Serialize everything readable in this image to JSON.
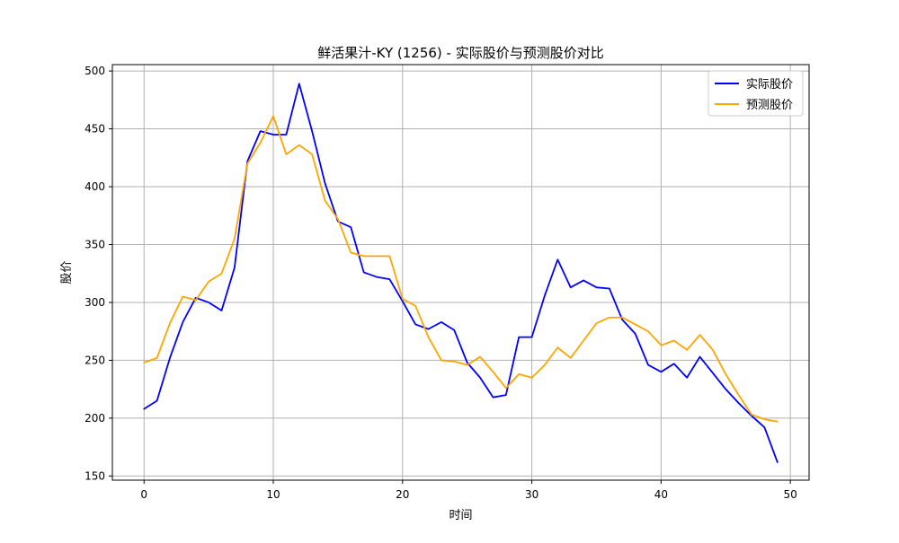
{
  "chart_data": {
    "type": "line",
    "title": "鲜活果汁-KY (1256) - 实际股价与预测股价对比",
    "xlabel": "时间",
    "ylabel": "股价",
    "xlim": [
      -2.45,
      51.45
    ],
    "ylim": [
      146.4,
      505.5
    ],
    "xticks": [
      0,
      10,
      20,
      30,
      40,
      50
    ],
    "xtick_labels": [
      "0",
      "10",
      "20",
      "30",
      "40",
      "50"
    ],
    "yticks": [
      150,
      200,
      250,
      300,
      350,
      400,
      450,
      500
    ],
    "ytick_labels": [
      "150",
      "200",
      "250",
      "300",
      "350",
      "400",
      "450",
      "500"
    ],
    "grid": true,
    "legend_position": "top-right",
    "x": [
      0,
      1,
      2,
      3,
      4,
      5,
      6,
      7,
      8,
      9,
      10,
      11,
      12,
      13,
      14,
      15,
      16,
      17,
      18,
      19,
      20,
      21,
      22,
      23,
      24,
      25,
      26,
      27,
      28,
      29,
      30,
      31,
      32,
      33,
      34,
      35,
      36,
      37,
      38,
      39,
      40,
      41,
      42,
      43,
      44,
      45,
      46,
      47,
      48,
      49
    ],
    "series": [
      {
        "name": "实际股价",
        "color": "#0000ff",
        "values": [
          208,
          215,
          252,
          283,
          304,
          300,
          293,
          330,
          422,
          448,
          445,
          445,
          489,
          448,
          403,
          370,
          365,
          326,
          322,
          320,
          301,
          281,
          277,
          283,
          276,
          248,
          235,
          218,
          220,
          270,
          270,
          306,
          337,
          313,
          319,
          313,
          312,
          285,
          273,
          246,
          240,
          247,
          235,
          253,
          239,
          225,
          213,
          202,
          192,
          162
        ]
      },
      {
        "name": "预测股价",
        "color": "#ffa500",
        "values": [
          248,
          252,
          282,
          305,
          302,
          318,
          325,
          355,
          420,
          438,
          461,
          428,
          436,
          428,
          388,
          372,
          343,
          340,
          340,
          340,
          303,
          297,
          270,
          250,
          249,
          246,
          253,
          240,
          226,
          238,
          235,
          246,
          261,
          252,
          267,
          282,
          287,
          287,
          281,
          275,
          263,
          267,
          259,
          272,
          259,
          238,
          220,
          203,
          199,
          197
        ]
      }
    ]
  }
}
